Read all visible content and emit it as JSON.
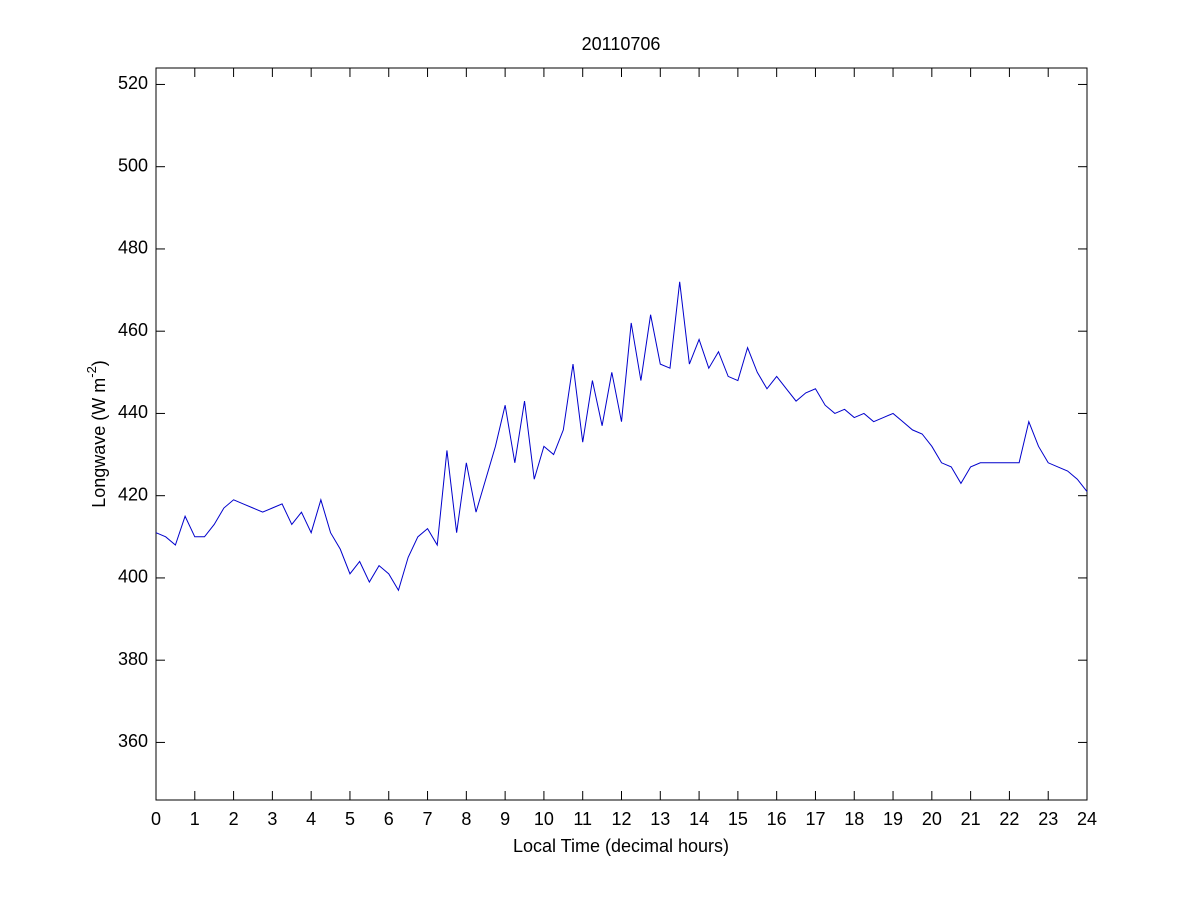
{
  "chart_data": {
    "type": "line",
    "title": "20110706",
    "xlabel": "Local Time (decimal hours)",
    "ylabel": [
      "Longwave (W m",
      "-2",
      ")"
    ],
    "x": [
      0,
      0.25,
      0.5,
      0.75,
      1,
      1.25,
      1.5,
      1.75,
      2,
      2.25,
      2.5,
      2.75,
      3,
      3.25,
      3.5,
      3.75,
      4,
      4.25,
      4.5,
      4.75,
      5,
      5.25,
      5.5,
      5.75,
      6,
      6.25,
      6.5,
      6.75,
      7,
      7.25,
      7.5,
      7.75,
      8,
      8.25,
      8.5,
      8.75,
      9,
      9.25,
      9.5,
      9.75,
      10,
      10.25,
      10.5,
      10.75,
      11,
      11.25,
      11.5,
      11.75,
      12,
      12.25,
      12.5,
      12.75,
      13,
      13.25,
      13.5,
      13.75,
      14,
      14.25,
      14.5,
      14.75,
      15,
      15.25,
      15.5,
      15.75,
      16,
      16.25,
      16.5,
      16.75,
      17,
      17.25,
      17.5,
      17.75,
      18,
      18.25,
      18.5,
      18.75,
      19,
      19.25,
      19.5,
      19.75,
      20,
      20.25,
      20.5,
      20.75,
      21,
      21.25,
      21.5,
      21.75,
      22,
      22.25,
      22.5,
      22.75,
      23,
      23.25,
      23.5,
      23.75,
      24
    ],
    "series": [
      {
        "color": "#0000cc",
        "values": [
          411,
          410,
          408,
          415,
          410,
          410,
          413,
          417,
          419,
          418,
          417,
          416,
          417,
          418,
          413,
          416,
          411,
          419,
          411,
          407,
          401,
          404,
          399,
          403,
          401,
          397,
          405,
          410,
          412,
          408,
          431,
          411,
          428,
          416,
          424,
          432,
          442,
          428,
          443,
          424,
          432,
          430,
          436,
          452,
          433,
          448,
          437,
          450,
          438,
          462,
          448,
          464,
          452,
          451,
          472,
          452,
          458,
          451,
          455,
          449,
          448,
          456,
          450,
          446,
          449,
          446,
          443,
          445,
          446,
          442,
          440,
          441,
          439,
          440,
          438,
          439,
          440,
          438,
          436,
          435,
          432,
          428,
          427,
          423,
          427,
          428,
          428,
          428,
          428,
          428,
          438,
          432,
          428,
          427,
          426,
          424,
          421
        ]
      }
    ],
    "xlim": [
      0,
      24
    ],
    "ylim": [
      346,
      524
    ],
    "xticks": [
      0,
      1,
      2,
      3,
      4,
      5,
      6,
      7,
      8,
      9,
      10,
      11,
      12,
      13,
      14,
      15,
      16,
      17,
      18,
      19,
      20,
      21,
      22,
      23,
      24
    ],
    "yticks": [
      360,
      380,
      400,
      420,
      440,
      460,
      480,
      500,
      520
    ]
  }
}
